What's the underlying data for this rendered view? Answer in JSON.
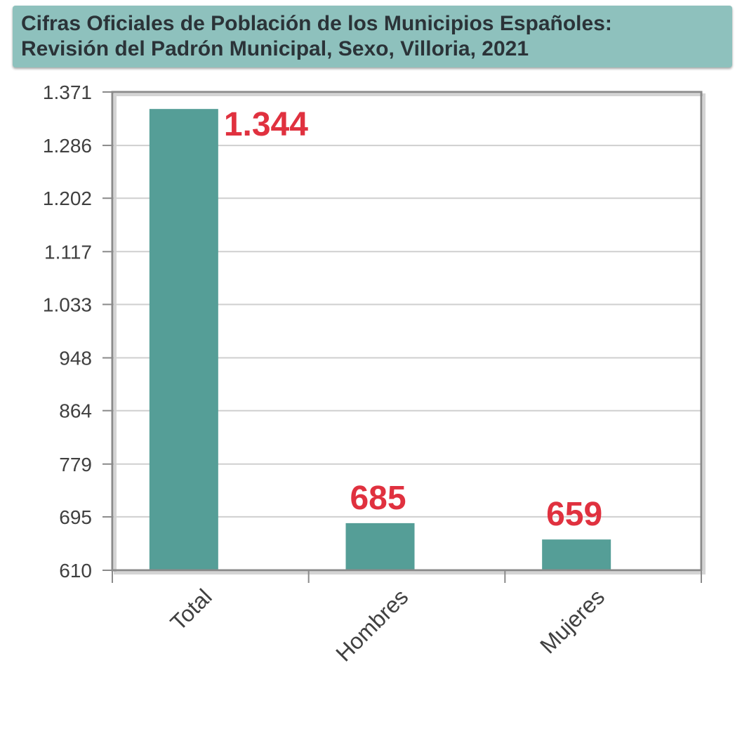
{
  "chart_data": {
    "type": "bar",
    "title": "Cifras Oficiales de Población de los Municipios Españoles:",
    "subtitle": "Revisión del Padrón Municipal, Sexo, Villoria, 2021",
    "categories": [
      "Total",
      "Hombres",
      "Mujeres"
    ],
    "values": [
      1344,
      685,
      659
    ],
    "data_labels": [
      "1.344",
      "685",
      "659"
    ],
    "ylim": [
      610,
      1371
    ],
    "y_ticks": [
      610,
      695,
      779,
      864,
      948,
      1033,
      1117,
      1202,
      1286,
      1371
    ],
    "y_tick_labels": [
      "610",
      "695",
      "779",
      "864",
      "948",
      "1.033",
      "1.117",
      "1.202",
      "1.286",
      "1.371"
    ],
    "grid": true,
    "bar_color": "#559e97",
    "label_color": "#e0313f",
    "header_color": "#8ec1bd"
  }
}
